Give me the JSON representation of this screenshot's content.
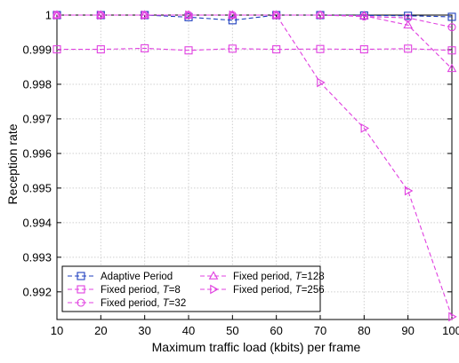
{
  "chart_data": {
    "type": "line",
    "xlabel": "Maximum traffic load (kbits) per frame",
    "ylabel": "Reception rate",
    "xlim": [
      10,
      100
    ],
    "ylim": [
      0.9912,
      1.0
    ],
    "x_ticks": [
      10,
      20,
      30,
      40,
      50,
      60,
      70,
      80,
      90,
      100
    ],
    "y_ticks": [
      0.992,
      0.993,
      0.994,
      0.995,
      0.996,
      0.997,
      0.998,
      0.999,
      1.0
    ],
    "y_tick_labels": [
      "0.992",
      "0.993",
      "0.994",
      "0.995",
      "0.996",
      "0.997",
      "0.998",
      "0.999",
      "1"
    ],
    "grid": true,
    "legend_position": "bottom-left",
    "x": [
      10,
      20,
      30,
      40,
      50,
      60,
      70,
      80,
      90,
      100
    ],
    "series": [
      {
        "name": "Adaptive Period",
        "legend_text": "Adaptive Period",
        "legend_italic": "",
        "legend_suffix": "",
        "color": "#1f3fbf",
        "marker": "square",
        "values": [
          1.0,
          1.0,
          1.0,
          0.99994,
          0.99985,
          1.0,
          1.0,
          0.99999,
          0.99998,
          0.99995
        ]
      },
      {
        "name": "Fixed period, T=8",
        "legend_text": "Fixed period, ",
        "legend_italic": "T",
        "legend_suffix": "=8",
        "color": "#e040e0",
        "marker": "square",
        "values": [
          0.99901,
          0.99901,
          0.99904,
          0.99898,
          0.99903,
          0.99901,
          0.99902,
          0.99901,
          0.99903,
          0.99898
        ]
      },
      {
        "name": "Fixed period, T=32",
        "legend_text": "Fixed period, ",
        "legend_italic": "T",
        "legend_suffix": "=32",
        "color": "#e040e0",
        "marker": "circle",
        "values": [
          1.0,
          1.0,
          1.0,
          1.0,
          1.0,
          1.0,
          1.0,
          0.99996,
          0.99992,
          0.99965
        ]
      },
      {
        "name": "Fixed period, T=128",
        "legend_text": "Fixed period, ",
        "legend_italic": "T",
        "legend_suffix": "=128",
        "color": "#e040e0",
        "marker": "triangle-up",
        "values": [
          1.0,
          1.0,
          1.0,
          1.0,
          1.0,
          1.0,
          1.0,
          0.99998,
          0.99971,
          0.99845
        ]
      },
      {
        "name": "Fixed period, T=256",
        "legend_text": "Fixed period, ",
        "legend_italic": "T",
        "legend_suffix": "=256",
        "color": "#e040e0",
        "marker": "triangle-right",
        "values": [
          1.0,
          1.0,
          1.0,
          1.0,
          1.0,
          1.0,
          0.99805,
          0.99673,
          0.99492,
          0.99128
        ]
      }
    ]
  }
}
